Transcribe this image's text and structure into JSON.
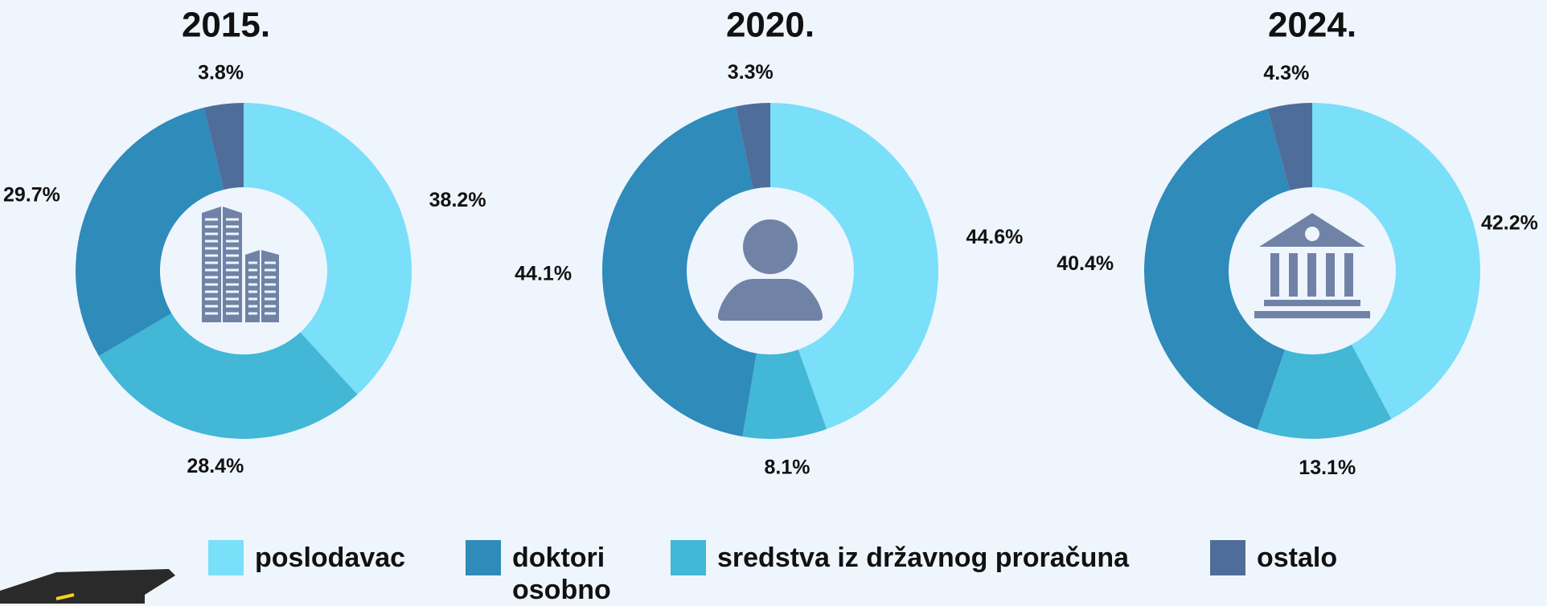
{
  "chart_data": [
    {
      "type": "pie",
      "title": "2015.",
      "categories": [
        "poslodavac",
        "doktori osobno",
        "sredstva iz državnog proračuna",
        "ostalo"
      ],
      "values": [
        38.2,
        29.7,
        28.4,
        3.8
      ],
      "value_labels": [
        "38.2%",
        "29.7%",
        "28.4%",
        "3.8%"
      ],
      "colors": [
        "#7adff8",
        "#2e8bba",
        "#42b7d6",
        "#4f6d9a"
      ]
    },
    {
      "type": "pie",
      "title": "2020.",
      "categories": [
        "poslodavac",
        "doktori osobno",
        "sredstva iz državnog proračuna",
        "ostalo"
      ],
      "values": [
        44.6,
        44.1,
        8.1,
        3.3
      ],
      "value_labels": [
        "44.6%",
        "44.1%",
        "8.1%",
        "3.3%"
      ],
      "colors": [
        "#7adff8",
        "#2e8bba",
        "#42b7d6",
        "#4f6d9a"
      ]
    },
    {
      "type": "pie",
      "title": "2024.",
      "categories": [
        "poslodavac",
        "doktori osobno",
        "sredstva iz državnog proračuna",
        "ostalo"
      ],
      "values": [
        42.2,
        40.4,
        13.1,
        4.3
      ],
      "value_labels": [
        "42.2%",
        "40.4%",
        "13.1%",
        "4.3%"
      ],
      "colors": [
        "#7adff8",
        "#2e8bba",
        "#42b7d6",
        "#4f6d9a"
      ]
    }
  ]
}
